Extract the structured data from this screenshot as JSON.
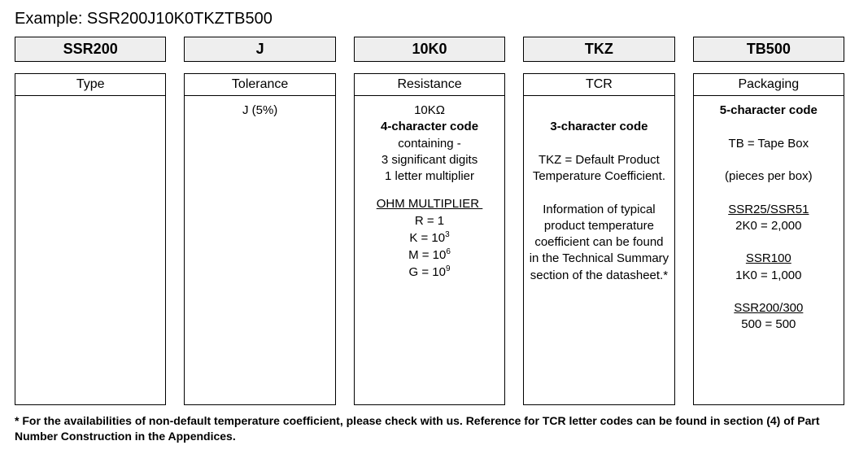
{
  "example_label": "Example: SSR200J10K0TKZTB500",
  "columns": [
    {
      "code": "SSR200",
      "label": "Type",
      "body_html": ""
    },
    {
      "code": "J",
      "label": "Tolerance",
      "body_html": "<p>J (5%)</p>"
    },
    {
      "code": "10K0",
      "label": "Resistance",
      "body_html": "<p>10KΩ</p><p class='bold'>4-character code</p><p>containing -</p><p>3 significant digits</p><p>1 letter multiplier</p><p style='margin-top:14px;' class='uline'>OHM MULTIPLIER&nbsp;</p><p>R = 1</p><p>K = 10<sup>3</sup></p><p>M = 10<sup>6</sup></p><p>G = 10<sup>9</sup></p>"
    },
    {
      "code": "TKZ",
      "label": "TCR",
      "body_html": "<p>&nbsp;</p><p class='bold'>3-character code</p><p>&nbsp;</p><p>TKZ = Default Product</p><p>Temperature Coefficient.</p><p>&nbsp;</p><p>Information of typical</p><p>product temperature</p><p>coefficient can be found</p><p>in the Technical Summary</p><p>section of the datasheet.*</p>"
    },
    {
      "code": "TB500",
      "label": "Packaging",
      "body_html": "<p class='bold'>5-character code</p><p>&nbsp;</p><p>TB = Tape Box</p><p>&nbsp;</p><p>(pieces per box)</p><p>&nbsp;</p><p class='uline'>SSR25/SSR51</p><p>2K0 = 2,000</p><p>&nbsp;</p><p class='uline'>SSR100</p><p>1K0 = 1,000</p><p>&nbsp;</p><p class='uline'>SSR200/300</p><p>500 = 500</p>"
    }
  ],
  "footnote": "* For the availabilities of non-default temperature coefficient, please check with us. Reference for TCR letter codes can be found in section (4) of Part Number Construction in the Appendices."
}
